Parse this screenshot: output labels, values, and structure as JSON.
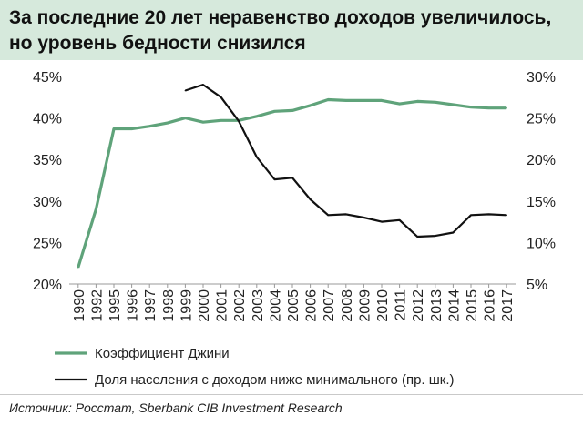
{
  "header": {
    "title_line1": "За последние 20 лет неравенство доходов увеличилось,",
    "title_line2": "но уровень бедности снизился"
  },
  "source": "Источник: Росстат, Sberbank CIB Investment Research",
  "chart_data": {
    "type": "line",
    "title": "За последние 20 лет неравенство доходов увеличилось, но уровень бедности снизился",
    "x": [
      "1990",
      "1992",
      "1995",
      "1996",
      "1997",
      "1998",
      "1999",
      "2000",
      "2001",
      "2002",
      "2003",
      "2004",
      "2005",
      "2006",
      "2007",
      "2008",
      "2009",
      "2010",
      "2011",
      "2012",
      "2013",
      "2014",
      "2015",
      "2016",
      "2017"
    ],
    "ylim_left": [
      20,
      45
    ],
    "ylim_right": [
      5,
      30
    ],
    "yticks_left": [
      "20%",
      "25%",
      "30%",
      "35%",
      "40%",
      "45%"
    ],
    "yticks_right": [
      "5%",
      "10%",
      "15%",
      "20%",
      "25%",
      "30%"
    ],
    "grid": false,
    "legend_position": "bottom",
    "series": [
      {
        "name": "Коэффициент Джини",
        "axis": "left",
        "color": "#5fa37a",
        "values": [
          22.0,
          29.0,
          38.7,
          38.7,
          39.0,
          39.4,
          40.0,
          39.5,
          39.7,
          39.7,
          40.2,
          40.8,
          40.9,
          41.5,
          42.2,
          42.1,
          42.1,
          42.1,
          41.7,
          42.0,
          41.9,
          41.6,
          41.3,
          41.2,
          41.2
        ]
      },
      {
        "name": "Доля населения с доходом ниже минимального (пр. шк.)",
        "axis": "right",
        "color": "#111111",
        "values": [
          null,
          null,
          null,
          null,
          null,
          null,
          28.3,
          29.0,
          27.5,
          24.6,
          20.3,
          17.6,
          17.8,
          15.2,
          13.3,
          13.4,
          13.0,
          12.5,
          12.7,
          10.7,
          10.8,
          11.2,
          13.3,
          13.4,
          13.3
        ]
      }
    ]
  }
}
